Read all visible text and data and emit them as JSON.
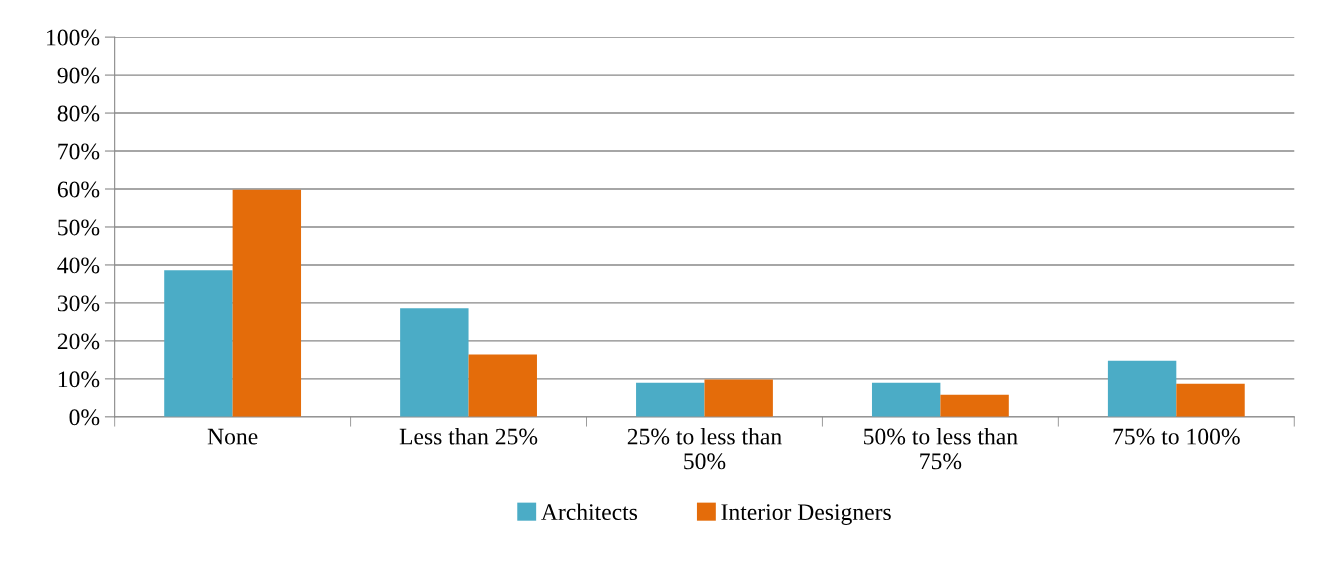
{
  "chart_data": {
    "type": "bar",
    "categories": [
      "None",
      "Less than 25%",
      "25% to less than\n50%",
      "50% to less than\n75%",
      "75% to 100%"
    ],
    "series": [
      {
        "name": "Architects",
        "color": "#4bacc6",
        "values": [
          38.6,
          28.6,
          9.0,
          9.0,
          14.8
        ]
      },
      {
        "name": "Interior Designers",
        "color": "#e46c0a",
        "values": [
          59.8,
          16.4,
          9.8,
          5.8,
          8.7
        ]
      }
    ],
    "ylim": [
      0,
      100
    ],
    "yticks": [
      {
        "value": 0,
        "label": "0%"
      },
      {
        "value": 10,
        "label": "10%"
      },
      {
        "value": 20,
        "label": "20%"
      },
      {
        "value": 30,
        "label": "30%"
      },
      {
        "value": 40,
        "label": "40%"
      },
      {
        "value": 50,
        "label": "50%"
      },
      {
        "value": 60,
        "label": "60%"
      },
      {
        "value": 70,
        "label": "70%"
      },
      {
        "value": 80,
        "label": "80%"
      },
      {
        "value": 90,
        "label": "90%"
      },
      {
        "value": 100,
        "label": "100%"
      }
    ],
    "grid": "y",
    "legend": "bottom"
  }
}
